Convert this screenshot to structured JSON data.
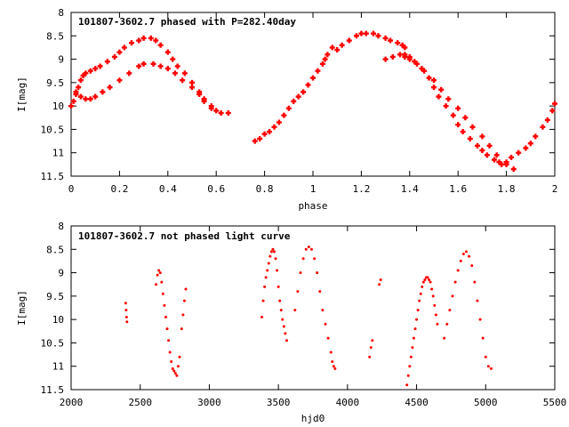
{
  "chart_data": [
    {
      "type": "scatter",
      "title": "101807-3602.7 phased with P=282.40day",
      "xlabel": "phase",
      "ylabel": "I[mag]",
      "xlim": [
        0,
        2
      ],
      "ylim": [
        11.5,
        8
      ],
      "y_inverted": true,
      "grid": false,
      "xticks": [
        "0",
        "0.2",
        "0.4",
        "0.6",
        "0.8",
        "1",
        "1.2",
        "1.4",
        "1.6",
        "1.8",
        "2"
      ],
      "yticks": [
        "8",
        "8.5",
        "9",
        "9.5",
        "10",
        "10.5",
        "11",
        "11.5"
      ],
      "series": [
        {
          "color": "#ff0000",
          "marker": "plus",
          "x": [
            0.0,
            0.01,
            0.02,
            0.03,
            0.04,
            0.05,
            0.06,
            0.08,
            0.1,
            0.12,
            0.15,
            0.18,
            0.2,
            0.22,
            0.25,
            0.28,
            0.3,
            0.33,
            0.35,
            0.37,
            0.4,
            0.42,
            0.44,
            0.47,
            0.5,
            0.53,
            0.55,
            0.58,
            0.6,
            0.62,
            0.65,
            0.02,
            0.04,
            0.06,
            0.08,
            0.1,
            0.13,
            0.16,
            0.2,
            0.24,
            0.28,
            0.3,
            0.34,
            0.37,
            0.4,
            0.43,
            0.46,
            0.5,
            0.53,
            0.55,
            0.58,
            0.76,
            0.78,
            0.8,
            0.82,
            0.84,
            0.86,
            0.88,
            0.9,
            0.92,
            0.94,
            0.96,
            0.98,
            1.0,
            1.02,
            1.04,
            1.06,
            1.08,
            1.05,
            1.1,
            1.12,
            1.15,
            1.18,
            1.2,
            1.22,
            1.25,
            1.27,
            1.3,
            1.32,
            1.35,
            1.37,
            1.38,
            1.3,
            1.33,
            1.36,
            1.38,
            1.4,
            1.42,
            1.45,
            1.48,
            1.5,
            1.52,
            1.55,
            1.58,
            1.6,
            1.62,
            1.65,
            1.68,
            1.7,
            1.72,
            1.75,
            1.77,
            1.78,
            1.8,
            1.82,
            1.85,
            1.88,
            1.9,
            1.92,
            1.95,
            1.97,
            1.99,
            2.0,
            1.38,
            1.4,
            1.43,
            1.46,
            1.5,
            1.53,
            1.56,
            1.6,
            1.63,
            1.66,
            1.7,
            1.73,
            1.76,
            1.8,
            1.83
          ],
          "y": [
            10.0,
            9.9,
            9.7,
            9.6,
            9.45,
            9.35,
            9.3,
            9.25,
            9.2,
            9.15,
            9.05,
            8.95,
            8.85,
            8.75,
            8.65,
            8.6,
            8.55,
            8.55,
            8.6,
            8.7,
            8.85,
            9.0,
            9.15,
            9.3,
            9.5,
            9.7,
            9.85,
            10.0,
            10.1,
            10.15,
            10.15,
            9.75,
            9.8,
            9.85,
            9.85,
            9.8,
            9.7,
            9.6,
            9.45,
            9.3,
            9.15,
            9.1,
            9.1,
            9.15,
            9.2,
            9.3,
            9.45,
            9.6,
            9.75,
            9.9,
            10.05,
            10.75,
            10.7,
            10.6,
            10.55,
            10.45,
            10.35,
            10.2,
            10.05,
            9.9,
            9.8,
            9.7,
            9.55,
            9.4,
            9.25,
            9.1,
            8.9,
            8.75,
            9.0,
            8.8,
            8.7,
            8.6,
            8.5,
            8.45,
            8.45,
            8.45,
            8.5,
            8.55,
            8.6,
            8.65,
            8.7,
            8.75,
            9.0,
            8.95,
            8.9,
            8.9,
            8.95,
            9.05,
            9.2,
            9.4,
            9.6,
            9.8,
            10.0,
            10.2,
            10.4,
            10.55,
            10.7,
            10.85,
            10.95,
            11.05,
            11.15,
            11.2,
            11.25,
            11.2,
            11.1,
            11.0,
            10.9,
            10.8,
            10.65,
            10.45,
            10.3,
            10.1,
            9.95,
            8.95,
            9.0,
            9.1,
            9.25,
            9.45,
            9.65,
            9.85,
            10.05,
            10.25,
            10.45,
            10.65,
            10.85,
            11.05,
            11.25,
            11.35
          ]
        }
      ]
    },
    {
      "type": "scatter",
      "title": "101807-3602.7 not phased light curve",
      "xlabel": "hjd0",
      "ylabel": "I[mag]",
      "xlim": [
        2000,
        5500
      ],
      "ylim": [
        11.5,
        8
      ],
      "y_inverted": true,
      "grid": false,
      "xticks": [
        "2000",
        "2500",
        "3000",
        "3500",
        "4000",
        "4500",
        "5000",
        "5500"
      ],
      "yticks": [
        "8",
        "8.5",
        "9",
        "9.5",
        "10",
        "10.5",
        "11",
        "11.5"
      ],
      "series": [
        {
          "color": "#ff0000",
          "marker": "dot",
          "x": [
            2395,
            2398,
            2401,
            2404,
            2615,
            2625,
            2635,
            2645,
            2655,
            2665,
            2675,
            2685,
            2695,
            2705,
            2715,
            2725,
            2735,
            2745,
            2755,
            2765,
            2775,
            2785,
            2800,
            2810,
            2820,
            2830,
            3380,
            3390,
            3400,
            3410,
            3420,
            3430,
            3440,
            3450,
            3460,
            3470,
            3480,
            3490,
            3500,
            3510,
            3520,
            3530,
            3540,
            3550,
            3560,
            3620,
            3640,
            3660,
            3680,
            3700,
            3720,
            3740,
            3760,
            3780,
            3800,
            3820,
            3840,
            3860,
            3880,
            3890,
            3900,
            3910,
            4160,
            4170,
            4180,
            4230,
            4240,
            4430,
            4440,
            4450,
            4460,
            4470,
            4480,
            4490,
            4500,
            4510,
            4520,
            4530,
            4540,
            4550,
            4560,
            4570,
            4580,
            4590,
            4600,
            4610,
            4620,
            4630,
            4640,
            4650,
            4700,
            4720,
            4740,
            4760,
            4780,
            4800,
            4820,
            4840,
            4860,
            4880,
            4900,
            4920,
            4940,
            4960,
            4980,
            5000,
            5020,
            5040
          ],
          "y": [
            9.65,
            9.8,
            9.95,
            10.05,
            9.25,
            9.05,
            8.95,
            9.0,
            9.2,
            9.45,
            9.7,
            9.95,
            10.2,
            10.45,
            10.7,
            10.9,
            11.05,
            11.1,
            11.15,
            11.2,
            11.0,
            10.8,
            10.2,
            9.9,
            9.6,
            9.35,
            9.95,
            9.6,
            9.3,
            9.1,
            8.95,
            8.8,
            8.65,
            8.55,
            8.5,
            8.55,
            8.7,
            8.95,
            9.3,
            9.6,
            9.8,
            10.0,
            10.15,
            10.3,
            10.45,
            9.8,
            9.4,
            9.0,
            8.7,
            8.5,
            8.45,
            8.5,
            8.7,
            9.0,
            9.4,
            9.8,
            10.1,
            10.4,
            10.7,
            10.9,
            11.0,
            11.05,
            10.8,
            10.6,
            10.45,
            9.25,
            9.15,
            11.4,
            11.2,
            11.0,
            10.8,
            10.6,
            10.4,
            10.2,
            10.0,
            9.8,
            9.6,
            9.45,
            9.3,
            9.2,
            9.15,
            9.1,
            9.1,
            9.15,
            9.2,
            9.35,
            9.5,
            9.7,
            9.9,
            10.1,
            10.4,
            10.1,
            9.8,
            9.5,
            9.2,
            8.95,
            8.75,
            8.6,
            8.55,
            8.65,
            8.85,
            9.2,
            9.6,
            10.0,
            10.4,
            10.8,
            11.0,
            11.05
          ]
        }
      ]
    }
  ]
}
